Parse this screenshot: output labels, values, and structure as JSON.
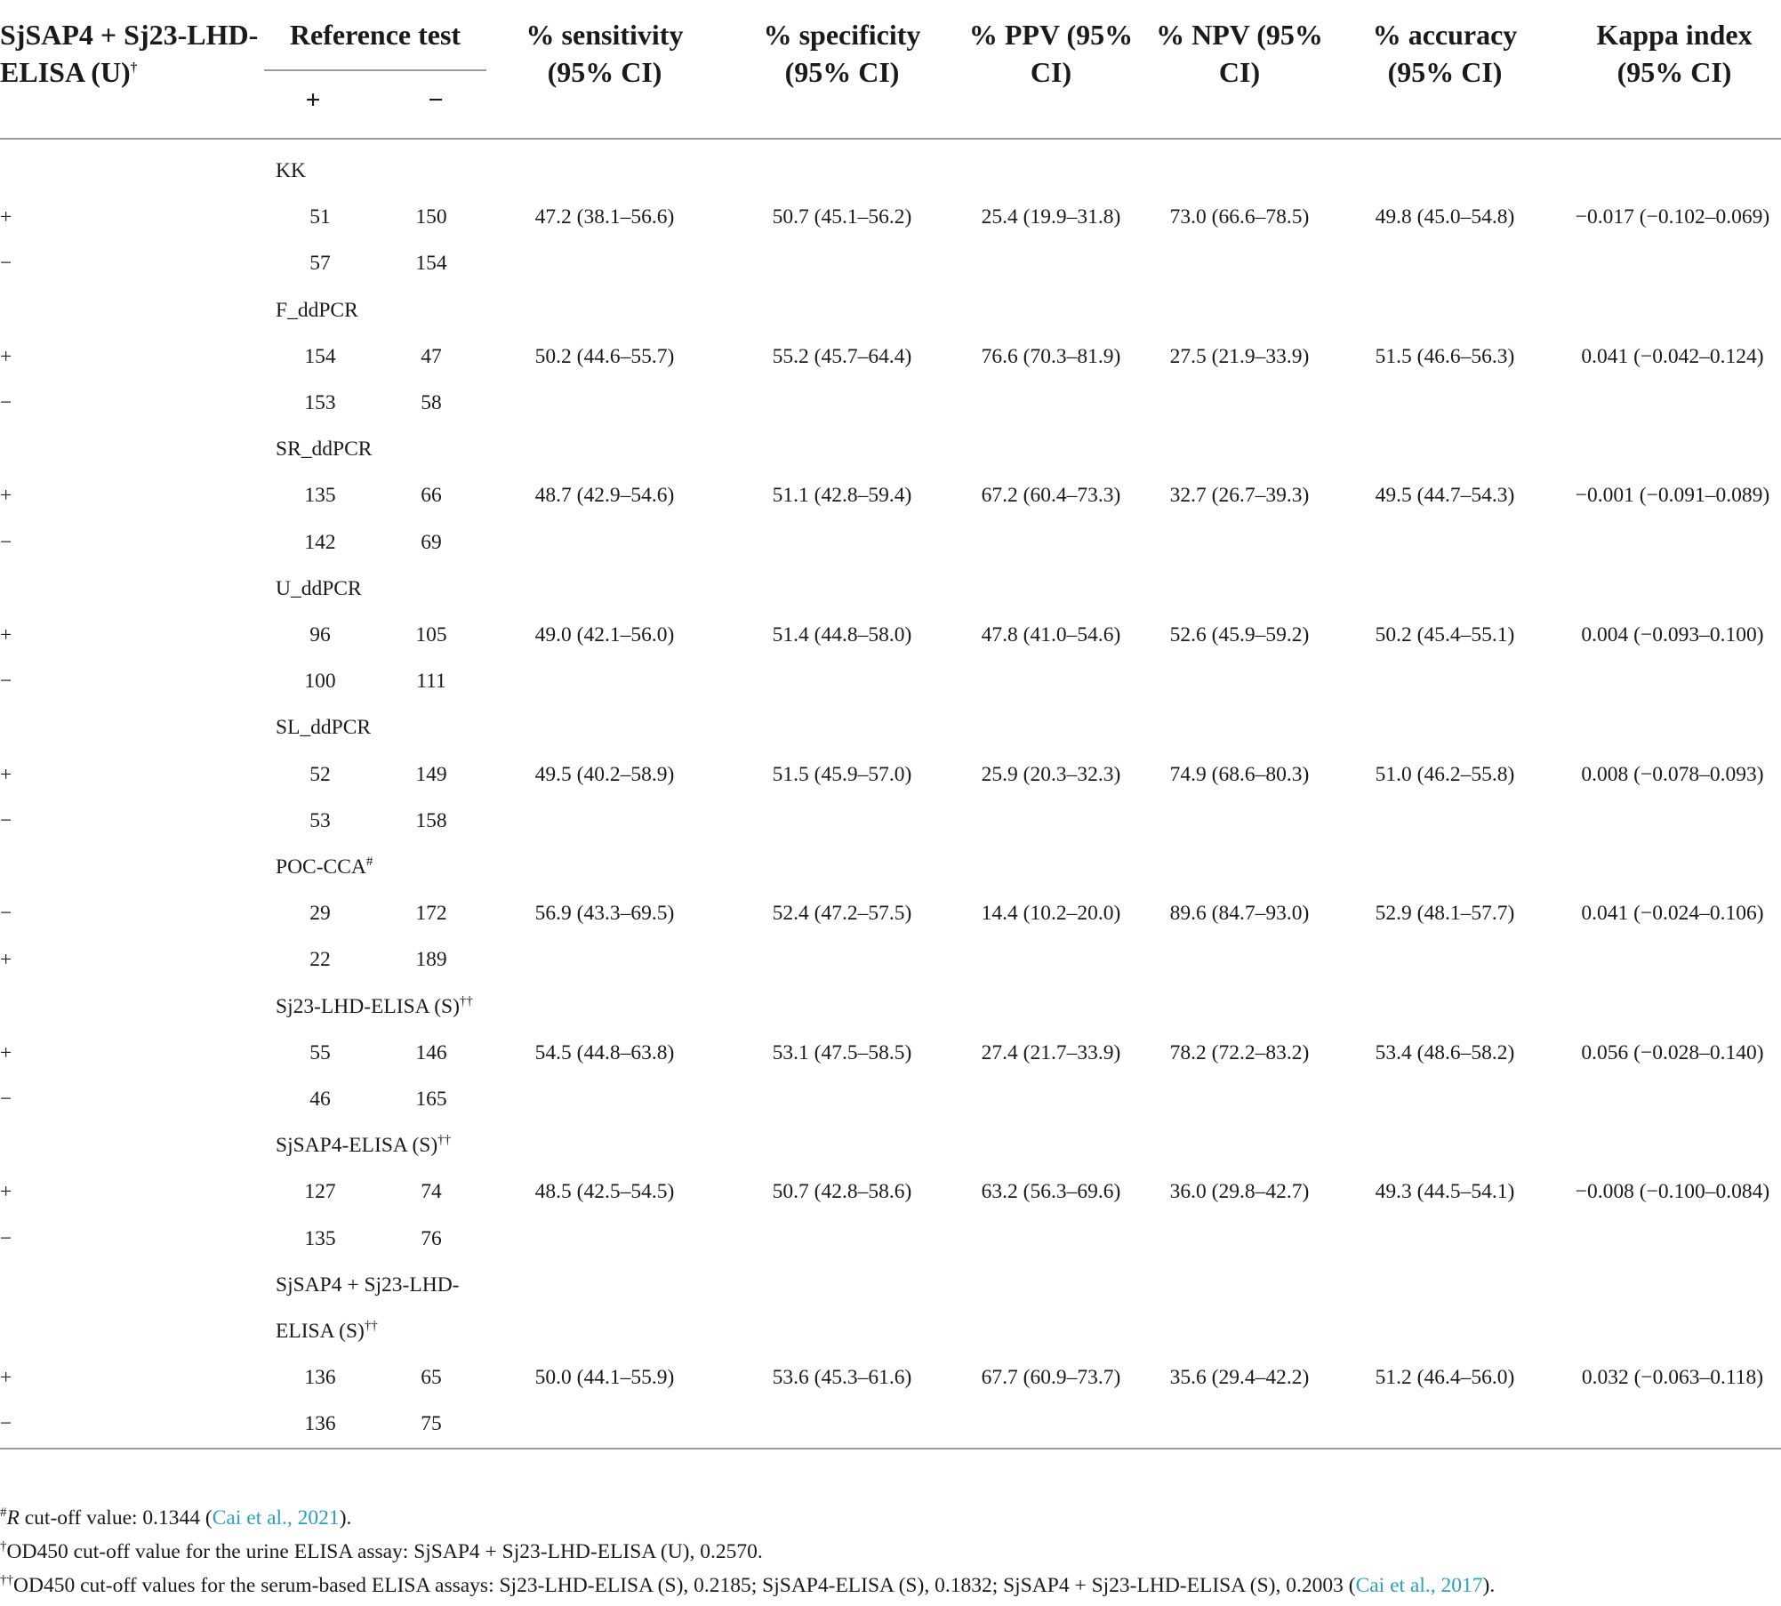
{
  "header": {
    "col1_line1": "SjSAP4 + Sj23-LHD-",
    "col1_line2": "ELISA (U)",
    "col1_sup": "†",
    "reference": "Reference test",
    "ref_pos": "+",
    "ref_neg": "−",
    "sensitivity": [
      "% sensitivity",
      "(95% CI)"
    ],
    "specificity": [
      "% specificity",
      "(95% CI)"
    ],
    "ppv": [
      "% PPV (95%",
      "CI)"
    ],
    "npv": [
      "% NPV (95%",
      "CI)"
    ],
    "accuracy": [
      "% accuracy",
      "(95% CI)"
    ],
    "kappa": [
      "Kappa index",
      "(95% CI)"
    ]
  },
  "groups": [
    {
      "name": "KK",
      "sup": "",
      "rows": [
        {
          "sign": "+",
          "pos": "51",
          "neg": "150",
          "sens": "47.2 (38.1–56.6)",
          "spec": "50.7 (45.1–56.2)",
          "ppv": "25.4 (19.9–31.8)",
          "npv": "73.0 (66.6–78.5)",
          "acc": "49.8 (45.0–54.8)",
          "kappa": "−0.017 (−0.102–0.069)"
        },
        {
          "sign": "−",
          "pos": "57",
          "neg": "154"
        }
      ]
    },
    {
      "name": "F_ddPCR",
      "sup": "",
      "rows": [
        {
          "sign": "+",
          "pos": "154",
          "neg": "47",
          "sens": "50.2 (44.6–55.7)",
          "spec": "55.2 (45.7–64.4)",
          "ppv": "76.6 (70.3–81.9)",
          "npv": "27.5 (21.9–33.9)",
          "acc": "51.5 (46.6–56.3)",
          "kappa": "0.041 (−0.042–0.124)"
        },
        {
          "sign": "−",
          "pos": "153",
          "neg": "58"
        }
      ]
    },
    {
      "name": "SR_ddPCR",
      "sup": "",
      "rows": [
        {
          "sign": "+",
          "pos": "135",
          "neg": "66",
          "sens": "48.7 (42.9–54.6)",
          "spec": "51.1 (42.8–59.4)",
          "ppv": "67.2 (60.4–73.3)",
          "npv": "32.7 (26.7–39.3)",
          "acc": "49.5 (44.7–54.3)",
          "kappa": "−0.001 (−0.091–0.089)"
        },
        {
          "sign": "−",
          "pos": "142",
          "neg": "69"
        }
      ]
    },
    {
      "name": "U_ddPCR",
      "sup": "",
      "rows": [
        {
          "sign": "+",
          "pos": "96",
          "neg": "105",
          "sens": "49.0 (42.1–56.0)",
          "spec": "51.4 (44.8–58.0)",
          "ppv": "47.8 (41.0–54.6)",
          "npv": "52.6 (45.9–59.2)",
          "acc": "50.2 (45.4–55.1)",
          "kappa": "0.004 (−0.093–0.100)"
        },
        {
          "sign": "−",
          "pos": "100",
          "neg": "111"
        }
      ]
    },
    {
      "name": "SL_ddPCR",
      "sup": "",
      "rows": [
        {
          "sign": "+",
          "pos": "52",
          "neg": "149",
          "sens": "49.5 (40.2–58.9)",
          "spec": "51.5 (45.9–57.0)",
          "ppv": "25.9 (20.3–32.3)",
          "npv": "74.9 (68.6–80.3)",
          "acc": "51.0 (46.2–55.8)",
          "kappa": "0.008 (−0.078–0.093)"
        },
        {
          "sign": "−",
          "pos": "53",
          "neg": "158"
        }
      ]
    },
    {
      "name": "POC-CCA",
      "sup": "#",
      "rows": [
        {
          "sign": "−",
          "pos": "29",
          "neg": "172",
          "sens": "56.9 (43.3–69.5)",
          "spec": "52.4 (47.2–57.5)",
          "ppv": "14.4 (10.2–20.0)",
          "npv": "89.6 (84.7–93.0)",
          "acc": "52.9 (48.1–57.7)",
          "kappa": "0.041 (−0.024–0.106)"
        },
        {
          "sign": "+",
          "pos": "22",
          "neg": "189"
        }
      ]
    },
    {
      "name": "Sj23-LHD-ELISA (S)",
      "sup": "††",
      "rows": [
        {
          "sign": "+",
          "pos": "55",
          "neg": "146",
          "sens": "54.5 (44.8–63.8)",
          "spec": "53.1 (47.5–58.5)",
          "ppv": "27.4 (21.7–33.9)",
          "npv": "78.2 (72.2–83.2)",
          "acc": "53.4 (48.6–58.2)",
          "kappa": "0.056 (−0.028–0.140)"
        },
        {
          "sign": "−",
          "pos": "46",
          "neg": "165"
        }
      ]
    },
    {
      "name": "SjSAP4-ELISA (S)",
      "sup": "††",
      "rows": [
        {
          "sign": "+",
          "pos": "127",
          "neg": "74",
          "sens": "48.5 (42.5–54.5)",
          "spec": "50.7 (42.8–58.6)",
          "ppv": "63.2 (56.3–69.6)",
          "npv": "36.0 (29.8–42.7)",
          "acc": "49.3 (44.5–54.1)",
          "kappa": "−0.008 (−0.100–0.084)"
        },
        {
          "sign": "−",
          "pos": "135",
          "neg": "76"
        }
      ]
    },
    {
      "name": "SjSAP4 + Sj23-LHD-",
      "name2": "ELISA (S)",
      "sup": "††",
      "rows": [
        {
          "sign": "+",
          "pos": "136",
          "neg": "65",
          "sens": "50.0 (44.1–55.9)",
          "spec": "53.6 (45.3–61.6)",
          "ppv": "67.7 (60.9–73.7)",
          "npv": "35.6 (29.4–42.2)",
          "acc": "51.2 (46.4–56.0)",
          "kappa": "0.032 (−0.063–0.118)"
        },
        {
          "sign": "−",
          "pos": "136",
          "neg": "75"
        }
      ]
    }
  ],
  "footnotes": {
    "fn1_mark": "#",
    "fn1_r": "R",
    "fn1_text": " cut-off value: 0.1344 (",
    "fn1_link": "Cai et al., 2021",
    "fn1_end": ").",
    "fn2_mark": "†",
    "fn2_text": "OD450 cut-off value for the urine ELISA assay: SjSAP4 + Sj23-LHD-ELISA (U), 0.2570.",
    "fn3_mark": "††",
    "fn3_text": "OD450 cut-off values for the serum-based ELISA assays: Sj23-LHD-ELISA (S), 0.2185; SjSAP4-ELISA (S), 0.1832; SjSAP4 + Sj23-LHD-ELISA (S), 0.2003 (",
    "fn3_link": "Cai et al., 2017",
    "fn3_end": ")."
  }
}
